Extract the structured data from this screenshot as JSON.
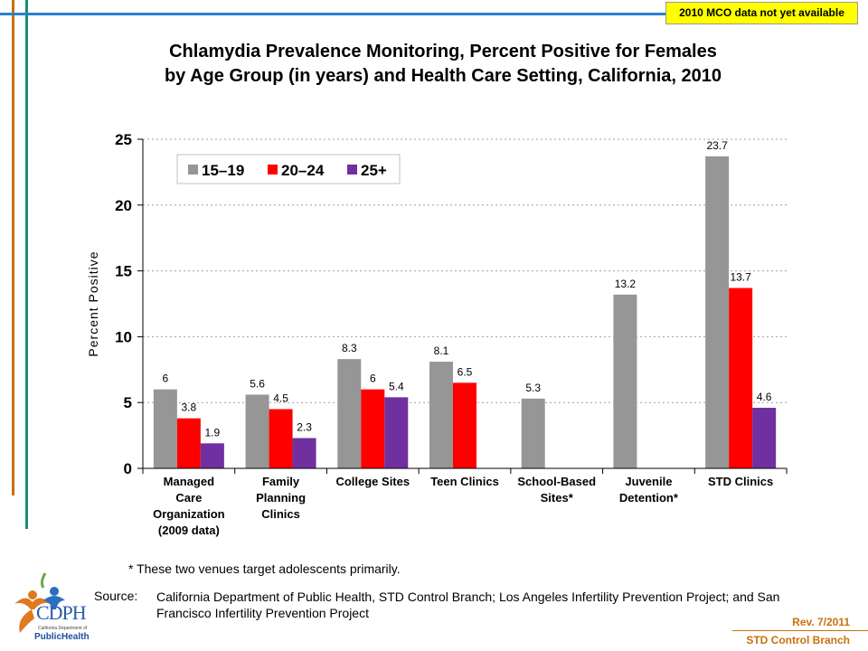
{
  "badge": "2010 MCO data not yet available",
  "title_line1": "Chlamydia Prevalence Monitoring, Percent Positive for Females",
  "title_line2": "by Age Group (in years) and Health Care Setting, California, 2010",
  "chart_data": {
    "type": "bar",
    "ylabel": "Percent Positive",
    "ylim": [
      0,
      25
    ],
    "yticks": [
      0,
      5,
      10,
      15,
      20,
      25
    ],
    "grid": true,
    "legend_position": "top-left",
    "categories": [
      [
        "Managed",
        "Care",
        "Organization",
        "(2009 data)"
      ],
      [
        "Family",
        "Planning",
        "Clinics"
      ],
      [
        "College Sites"
      ],
      [
        "Teen Clinics"
      ],
      [
        "School-Based",
        "Sites*"
      ],
      [
        "Juvenile",
        "Detention*"
      ],
      [
        "STD Clinics"
      ]
    ],
    "series": [
      {
        "name": "15–19",
        "color": "#969696",
        "values": [
          6,
          5.6,
          8.3,
          8.1,
          5.3,
          13.2,
          23.7
        ],
        "labels": [
          "6",
          "5.6",
          "8.3",
          "8.1",
          "5.3",
          "13.2",
          "23.7"
        ]
      },
      {
        "name": "20–24",
        "color": "#ff0000",
        "values": [
          3.8,
          4.5,
          6,
          6.5,
          null,
          null,
          13.7
        ],
        "labels": [
          "3.8",
          "4.5",
          "6",
          "6.5",
          null,
          null,
          "13.7"
        ]
      },
      {
        "name": "25+",
        "color": "#7030a0",
        "values": [
          1.9,
          2.3,
          5.4,
          null,
          null,
          null,
          4.6
        ],
        "labels": [
          "1.9",
          "2.3",
          "5.4",
          null,
          null,
          null,
          "4.6"
        ]
      }
    ]
  },
  "footnote": "* These two venues target adolescents primarily.",
  "source_label": "Source:",
  "source_text": "California Department of Public Health, STD Control Branch; Los Angeles Infertility Prevention Project; and San Francisco Infertility Prevention Project",
  "rev": "Rev. 7/2011",
  "branch": "STD Control Branch",
  "logo": {
    "name": "CDPH",
    "subtitle": "California Department of",
    "public_health": "PublicHealth"
  },
  "colors": {
    "orange": "#c8700f",
    "teal": "#1a8f78",
    "blue": "#2a7fd0"
  }
}
